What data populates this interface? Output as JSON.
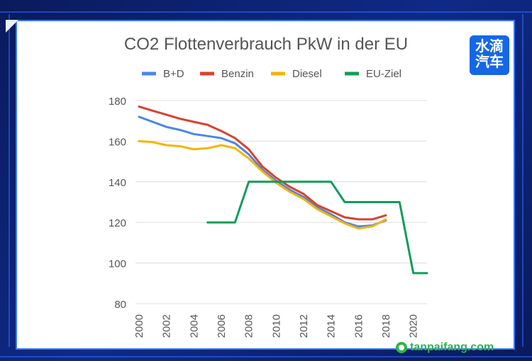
{
  "logo": {
    "line1": "水滴",
    "line2": "汽车"
  },
  "watermark": "tanpaifang.com",
  "chart_data": {
    "type": "line",
    "title": "CO2 Flottenverbrauch PkW in der EU",
    "xlabel": "",
    "ylabel": "",
    "ylim": [
      80,
      180
    ],
    "yticks": [
      80,
      100,
      120,
      140,
      160,
      180
    ],
    "xlim": [
      2000,
      2021
    ],
    "xticks": [
      "2000",
      "2002",
      "2004",
      "2006",
      "2008",
      "2010",
      "2012",
      "2014",
      "2016",
      "2018",
      "2020"
    ],
    "grid": true,
    "legend": "top",
    "series": [
      {
        "name": "B+D",
        "color": "#4a86e8",
        "points": [
          [
            2000,
            172
          ],
          [
            2001,
            169.5
          ],
          [
            2002,
            167
          ],
          [
            2003,
            165.5
          ],
          [
            2004,
            163.5
          ],
          [
            2005,
            162.5
          ],
          [
            2006,
            161.5
          ],
          [
            2007,
            159
          ],
          [
            2008,
            153.5
          ],
          [
            2009,
            146
          ],
          [
            2010,
            140.5
          ],
          [
            2011,
            136
          ],
          [
            2012,
            132.5
          ],
          [
            2013,
            127.5
          ],
          [
            2014,
            124
          ],
          [
            2015,
            120
          ],
          [
            2016,
            118
          ],
          [
            2017,
            118.5
          ],
          [
            2018,
            121
          ]
        ]
      },
      {
        "name": "Benzin",
        "color": "#d9412e",
        "points": [
          [
            2000,
            177
          ],
          [
            2001,
            175
          ],
          [
            2002,
            173
          ],
          [
            2003,
            171
          ],
          [
            2004,
            169.5
          ],
          [
            2005,
            168
          ],
          [
            2006,
            165
          ],
          [
            2007,
            161.5
          ],
          [
            2008,
            156
          ],
          [
            2009,
            147.5
          ],
          [
            2010,
            142
          ],
          [
            2011,
            137.5
          ],
          [
            2012,
            134
          ],
          [
            2013,
            128.5
          ],
          [
            2014,
            125.5
          ],
          [
            2015,
            122.5
          ],
          [
            2016,
            121.5
          ],
          [
            2017,
            121.5
          ],
          [
            2018,
            123.5
          ]
        ]
      },
      {
        "name": "Diesel",
        "color": "#f4b400",
        "points": [
          [
            2000,
            160
          ],
          [
            2001,
            159.5
          ],
          [
            2002,
            158
          ],
          [
            2003,
            157.5
          ],
          [
            2004,
            156
          ],
          [
            2005,
            156.5
          ],
          [
            2006,
            158
          ],
          [
            2007,
            156.5
          ],
          [
            2008,
            151.5
          ],
          [
            2009,
            145
          ],
          [
            2010,
            139.5
          ],
          [
            2011,
            135
          ],
          [
            2012,
            131.5
          ],
          [
            2013,
            126.5
          ],
          [
            2014,
            123
          ],
          [
            2015,
            119.5
          ],
          [
            2016,
            117
          ],
          [
            2017,
            118
          ],
          [
            2018,
            121.5
          ]
        ]
      },
      {
        "name": "EU-Ziel",
        "color": "#0f9d58",
        "points": [
          [
            2005,
            120
          ],
          [
            2007,
            120
          ],
          [
            2008,
            140
          ],
          [
            2014,
            140
          ],
          [
            2015,
            130
          ],
          [
            2019,
            130
          ],
          [
            2020,
            95
          ],
          [
            2021,
            95
          ]
        ]
      }
    ]
  }
}
